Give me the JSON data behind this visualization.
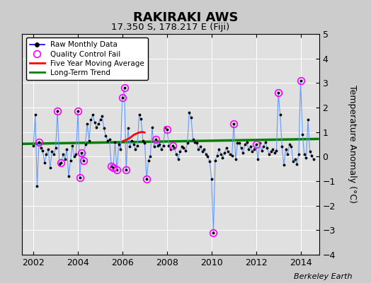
{
  "title": "RAKIRAKI AWS",
  "subtitle": "17.350 S, 178.217 E (Fiji)",
  "ylabel": "Temperature Anomaly (°C)",
  "watermark": "Berkeley Earth",
  "xlim": [
    2001.5,
    2014.83
  ],
  "ylim": [
    -4,
    5
  ],
  "yticks": [
    -4,
    -3,
    -2,
    -1,
    0,
    1,
    2,
    3,
    4,
    5
  ],
  "xticks": [
    2002,
    2004,
    2006,
    2008,
    2010,
    2012,
    2014
  ],
  "background_color": "#cccccc",
  "plot_bg_color": "#e0e0e0",
  "raw_data": [
    [
      2002.0,
      0.45
    ],
    [
      2002.083,
      1.7
    ],
    [
      2002.167,
      -1.2
    ],
    [
      2002.25,
      0.6
    ],
    [
      2002.333,
      0.35
    ],
    [
      2002.417,
      0.25
    ],
    [
      2002.5,
      -0.25
    ],
    [
      2002.583,
      0.1
    ],
    [
      2002.667,
      0.3
    ],
    [
      2002.75,
      -0.45
    ],
    [
      2002.833,
      0.2
    ],
    [
      2002.917,
      0.1
    ],
    [
      2003.0,
      0.35
    ],
    [
      2003.083,
      1.85
    ],
    [
      2003.167,
      -0.3
    ],
    [
      2003.25,
      -0.25
    ],
    [
      2003.333,
      0.1
    ],
    [
      2003.417,
      -0.1
    ],
    [
      2003.5,
      0.3
    ],
    [
      2003.583,
      -0.8
    ],
    [
      2003.667,
      -0.15
    ],
    [
      2003.75,
      0.45
    ],
    [
      2003.833,
      0.0
    ],
    [
      2003.917,
      0.1
    ],
    [
      2004.0,
      1.85
    ],
    [
      2004.083,
      -0.85
    ],
    [
      2004.167,
      0.15
    ],
    [
      2004.25,
      -0.15
    ],
    [
      2004.333,
      0.5
    ],
    [
      2004.417,
      1.35
    ],
    [
      2004.5,
      0.65
    ],
    [
      2004.583,
      1.5
    ],
    [
      2004.667,
      1.7
    ],
    [
      2004.75,
      1.4
    ],
    [
      2004.833,
      1.2
    ],
    [
      2004.917,
      1.35
    ],
    [
      2005.0,
      1.5
    ],
    [
      2005.083,
      1.65
    ],
    [
      2005.167,
      1.15
    ],
    [
      2005.25,
      0.85
    ],
    [
      2005.333,
      0.65
    ],
    [
      2005.417,
      0.7
    ],
    [
      2005.5,
      -0.4
    ],
    [
      2005.583,
      -0.45
    ],
    [
      2005.667,
      0.6
    ],
    [
      2005.75,
      -0.55
    ],
    [
      2005.833,
      0.5
    ],
    [
      2005.917,
      0.3
    ],
    [
      2006.0,
      2.4
    ],
    [
      2006.083,
      2.8
    ],
    [
      2006.167,
      -0.55
    ],
    [
      2006.25,
      1.15
    ],
    [
      2006.333,
      0.4
    ],
    [
      2006.417,
      0.65
    ],
    [
      2006.5,
      0.5
    ],
    [
      2006.583,
      0.3
    ],
    [
      2006.667,
      0.45
    ],
    [
      2006.75,
      1.7
    ],
    [
      2006.833,
      1.55
    ],
    [
      2006.917,
      0.65
    ],
    [
      2007.0,
      0.55
    ],
    [
      2007.083,
      -0.9
    ],
    [
      2007.167,
      -0.15
    ],
    [
      2007.25,
      0.0
    ],
    [
      2007.333,
      1.2
    ],
    [
      2007.417,
      0.4
    ],
    [
      2007.5,
      0.7
    ],
    [
      2007.583,
      0.45
    ],
    [
      2007.667,
      0.5
    ],
    [
      2007.75,
      0.3
    ],
    [
      2007.833,
      0.45
    ],
    [
      2007.917,
      1.2
    ],
    [
      2008.0,
      1.1
    ],
    [
      2008.083,
      0.45
    ],
    [
      2008.167,
      0.3
    ],
    [
      2008.25,
      0.45
    ],
    [
      2008.333,
      0.35
    ],
    [
      2008.417,
      0.1
    ],
    [
      2008.5,
      -0.1
    ],
    [
      2008.583,
      0.2
    ],
    [
      2008.667,
      0.4
    ],
    [
      2008.75,
      0.35
    ],
    [
      2008.833,
      0.25
    ],
    [
      2008.917,
      0.55
    ],
    [
      2009.0,
      1.8
    ],
    [
      2009.083,
      1.6
    ],
    [
      2009.167,
      0.7
    ],
    [
      2009.25,
      0.6
    ],
    [
      2009.333,
      0.55
    ],
    [
      2009.417,
      0.3
    ],
    [
      2009.5,
      0.4
    ],
    [
      2009.583,
      0.2
    ],
    [
      2009.667,
      0.3
    ],
    [
      2009.75,
      0.1
    ],
    [
      2009.833,
      0.0
    ],
    [
      2009.917,
      -0.2
    ],
    [
      2010.0,
      -0.9
    ],
    [
      2010.083,
      -3.1
    ],
    [
      2010.167,
      -0.15
    ],
    [
      2010.25,
      0.05
    ],
    [
      2010.333,
      0.3
    ],
    [
      2010.417,
      0.1
    ],
    [
      2010.5,
      -0.05
    ],
    [
      2010.583,
      0.15
    ],
    [
      2010.667,
      0.35
    ],
    [
      2010.75,
      0.2
    ],
    [
      2010.833,
      0.1
    ],
    [
      2010.917,
      0.05
    ],
    [
      2011.0,
      1.35
    ],
    [
      2011.083,
      -0.1
    ],
    [
      2011.167,
      0.55
    ],
    [
      2011.25,
      0.55
    ],
    [
      2011.333,
      0.35
    ],
    [
      2011.417,
      0.15
    ],
    [
      2011.5,
      0.5
    ],
    [
      2011.583,
      0.6
    ],
    [
      2011.667,
      0.3
    ],
    [
      2011.75,
      0.4
    ],
    [
      2011.833,
      0.2
    ],
    [
      2011.917,
      0.3
    ],
    [
      2012.0,
      0.5
    ],
    [
      2012.083,
      -0.1
    ],
    [
      2012.167,
      0.55
    ],
    [
      2012.25,
      0.25
    ],
    [
      2012.333,
      0.4
    ],
    [
      2012.417,
      0.6
    ],
    [
      2012.5,
      0.35
    ],
    [
      2012.583,
      0.1
    ],
    [
      2012.667,
      0.2
    ],
    [
      2012.75,
      0.3
    ],
    [
      2012.833,
      0.15
    ],
    [
      2012.917,
      0.25
    ],
    [
      2013.0,
      2.6
    ],
    [
      2013.083,
      1.7
    ],
    [
      2013.167,
      0.4
    ],
    [
      2013.25,
      -0.35
    ],
    [
      2013.333,
      0.3
    ],
    [
      2013.417,
      0.1
    ],
    [
      2013.5,
      0.5
    ],
    [
      2013.583,
      0.4
    ],
    [
      2013.667,
      -0.2
    ],
    [
      2013.75,
      -0.1
    ],
    [
      2013.833,
      -0.3
    ],
    [
      2013.917,
      0.1
    ],
    [
      2014.0,
      3.1
    ],
    [
      2014.083,
      0.9
    ],
    [
      2014.167,
      0.1
    ],
    [
      2014.25,
      -0.05
    ],
    [
      2014.333,
      1.5
    ],
    [
      2014.417,
      0.2
    ],
    [
      2014.5,
      0.05
    ],
    [
      2014.583,
      -0.1
    ]
  ],
  "qc_fail_points": [
    [
      2002.25,
      0.6
    ],
    [
      2003.083,
      1.85
    ],
    [
      2003.25,
      -0.25
    ],
    [
      2004.0,
      1.85
    ],
    [
      2004.083,
      -0.85
    ],
    [
      2004.167,
      0.15
    ],
    [
      2004.25,
      -0.15
    ],
    [
      2005.5,
      -0.4
    ],
    [
      2005.583,
      -0.45
    ],
    [
      2005.75,
      -0.55
    ],
    [
      2006.0,
      2.4
    ],
    [
      2006.083,
      2.8
    ],
    [
      2006.167,
      -0.55
    ],
    [
      2007.083,
      -0.9
    ],
    [
      2007.5,
      0.7
    ],
    [
      2008.0,
      1.1
    ],
    [
      2008.25,
      0.45
    ],
    [
      2010.083,
      -3.1
    ],
    [
      2011.0,
      1.35
    ],
    [
      2012.0,
      0.5
    ],
    [
      2013.0,
      2.6
    ],
    [
      2014.0,
      3.1
    ]
  ],
  "moving_avg": [
    [
      2006.0,
      0.62
    ],
    [
      2006.083,
      0.65
    ],
    [
      2006.167,
      0.68
    ],
    [
      2006.25,
      0.72
    ],
    [
      2006.333,
      0.76
    ],
    [
      2006.417,
      0.82
    ],
    [
      2006.5,
      0.88
    ],
    [
      2006.583,
      0.92
    ],
    [
      2006.667,
      0.95
    ],
    [
      2006.75,
      0.98
    ],
    [
      2006.833,
      1.0
    ],
    [
      2006.917,
      1.0
    ],
    [
      2007.0,
      0.98
    ]
  ],
  "trend_x": [
    2001.5,
    2014.83
  ],
  "trend_y": [
    0.52,
    0.72
  ]
}
